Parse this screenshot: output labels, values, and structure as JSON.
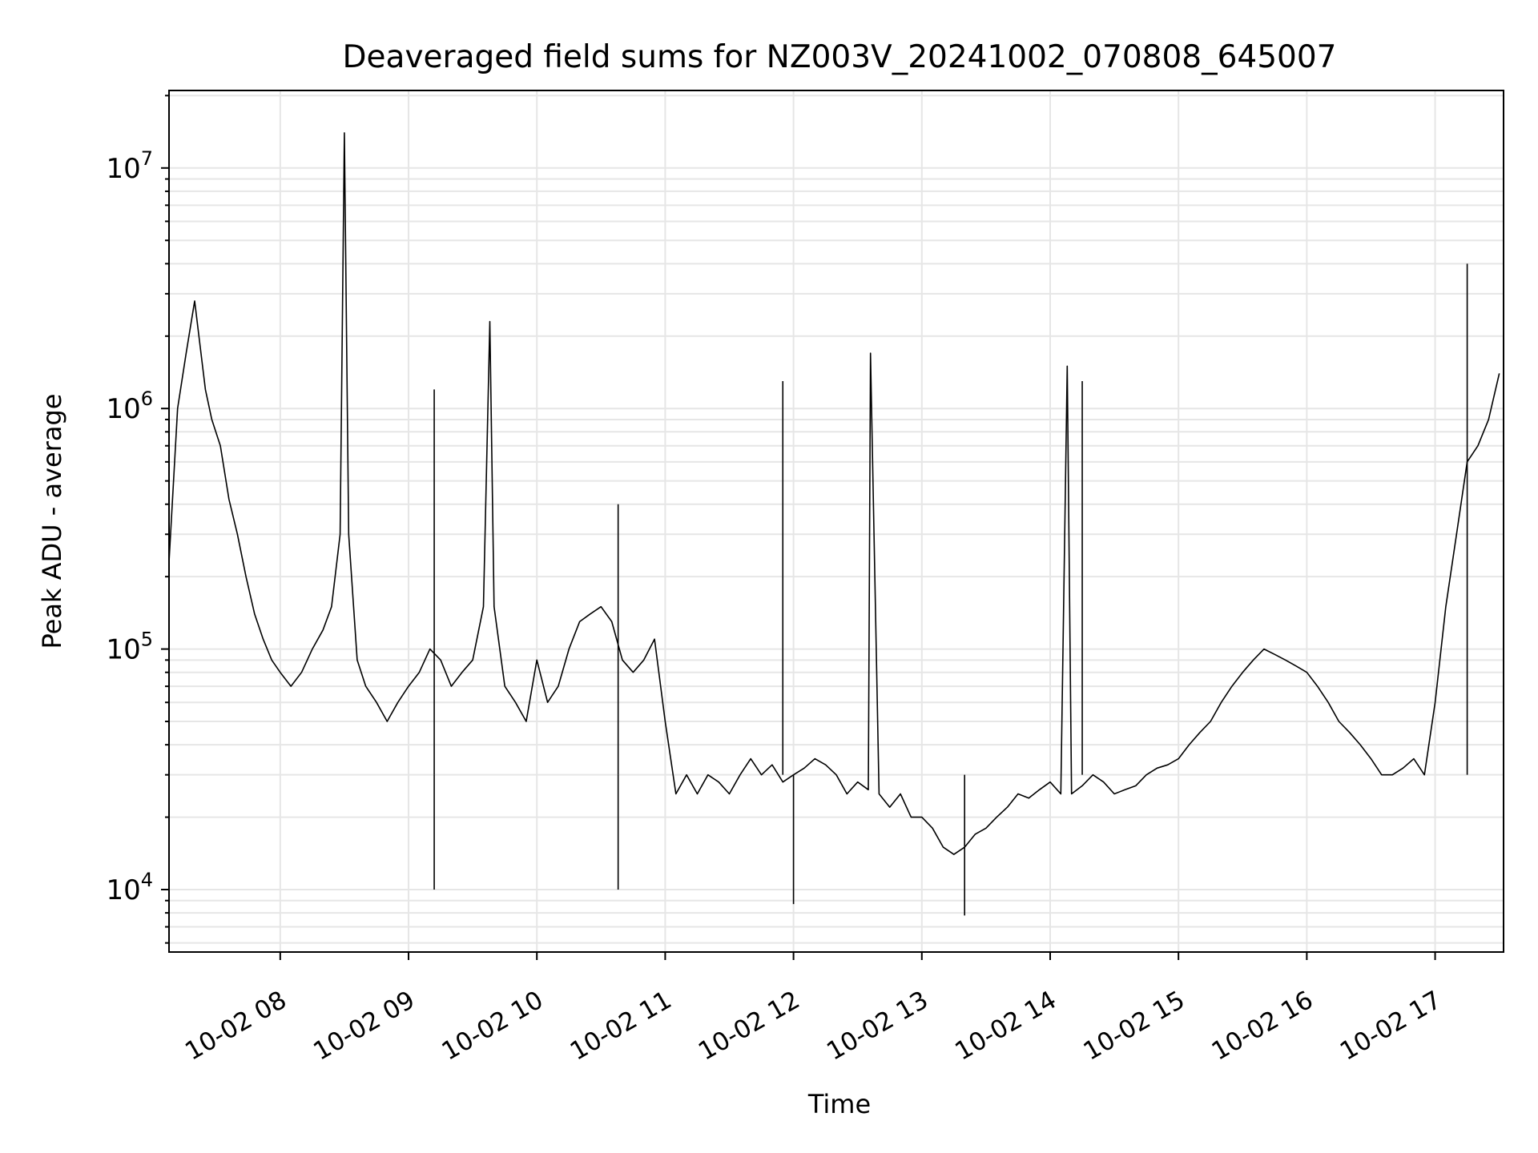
{
  "chart_data": {
    "type": "line",
    "title": "Deaveraged field sums for NZ003V_20241002_070808_645007",
    "xlabel": "Time",
    "ylabel": "Peak ADU - average",
    "x_range": [
      "2024-10-02T07:08",
      "2024-10-02T17:32"
    ],
    "y_scale": "log",
    "y_range": [
      5500,
      21000000
    ],
    "x_ticks": [
      {
        "value": "2024-10-02T08:00",
        "label": "10-02 08"
      },
      {
        "value": "2024-10-02T09:00",
        "label": "10-02 09"
      },
      {
        "value": "2024-10-02T10:00",
        "label": "10-02 10"
      },
      {
        "value": "2024-10-02T11:00",
        "label": "10-02 11"
      },
      {
        "value": "2024-10-02T12:00",
        "label": "10-02 12"
      },
      {
        "value": "2024-10-02T13:00",
        "label": "10-02 13"
      },
      {
        "value": "2024-10-02T14:00",
        "label": "10-02 14"
      },
      {
        "value": "2024-10-02T15:00",
        "label": "10-02 15"
      },
      {
        "value": "2024-10-02T16:00",
        "label": "10-02 16"
      },
      {
        "value": "2024-10-02T17:00",
        "label": "10-02 17"
      }
    ],
    "y_ticks": [
      {
        "value": 10000,
        "base": "10",
        "exp": "4"
      },
      {
        "value": 100000,
        "base": "10",
        "exp": "5"
      },
      {
        "value": 1000000,
        "base": "10",
        "exp": "6"
      },
      {
        "value": 10000000,
        "base": "10",
        "exp": "7"
      }
    ],
    "grid": true,
    "line_color": "#000000",
    "grid_color": "#e6e6e6",
    "series": [
      {
        "x": [
          "2024-10-02T07:08",
          "2024-10-02T07:12",
          "2024-10-02T07:16",
          "2024-10-02T07:20",
          "2024-10-02T07:25",
          "2024-10-02T07:28",
          "2024-10-02T07:32",
          "2024-10-02T07:36",
          "2024-10-02T07:40",
          "2024-10-02T07:44",
          "2024-10-02T07:48",
          "2024-10-02T07:52",
          "2024-10-02T07:56",
          "2024-10-02T08:00",
          "2024-10-02T08:05",
          "2024-10-02T08:10",
          "2024-10-02T08:15",
          "2024-10-02T08:20",
          "2024-10-02T08:24",
          "2024-10-02T08:28",
          "2024-10-02T08:30",
          "2024-10-02T08:32",
          "2024-10-02T08:36",
          "2024-10-02T08:40",
          "2024-10-02T08:45",
          "2024-10-02T08:50",
          "2024-10-02T08:55",
          "2024-10-02T09:00",
          "2024-10-02T09:05",
          "2024-10-02T09:10",
          "2024-10-02T09:15",
          "2024-10-02T09:20",
          "2024-10-02T09:25",
          "2024-10-02T09:30",
          "2024-10-02T09:35",
          "2024-10-02T09:38",
          "2024-10-02T09:40",
          "2024-10-02T09:45",
          "2024-10-02T09:50",
          "2024-10-02T09:55",
          "2024-10-02T10:00",
          "2024-10-02T10:05",
          "2024-10-02T10:10",
          "2024-10-02T10:15",
          "2024-10-02T10:20",
          "2024-10-02T10:25",
          "2024-10-02T10:30",
          "2024-10-02T10:35",
          "2024-10-02T10:40",
          "2024-10-02T10:45",
          "2024-10-02T10:50",
          "2024-10-02T10:55",
          "2024-10-02T11:00",
          "2024-10-02T11:05",
          "2024-10-02T11:10",
          "2024-10-02T11:15",
          "2024-10-02T11:20",
          "2024-10-02T11:25",
          "2024-10-02T11:30",
          "2024-10-02T11:35",
          "2024-10-02T11:40",
          "2024-10-02T11:45",
          "2024-10-02T11:50",
          "2024-10-02T11:55",
          "2024-10-02T12:00",
          "2024-10-02T12:05",
          "2024-10-02T12:10",
          "2024-10-02T12:15",
          "2024-10-02T12:20",
          "2024-10-02T12:25",
          "2024-10-02T12:30",
          "2024-10-02T12:35",
          "2024-10-02T12:36",
          "2024-10-02T12:40",
          "2024-10-02T12:45",
          "2024-10-02T12:50",
          "2024-10-02T12:55",
          "2024-10-02T13:00",
          "2024-10-02T13:05",
          "2024-10-02T13:10",
          "2024-10-02T13:15",
          "2024-10-02T13:20",
          "2024-10-02T13:25",
          "2024-10-02T13:30",
          "2024-10-02T13:35",
          "2024-10-02T13:40",
          "2024-10-02T13:45",
          "2024-10-02T13:50",
          "2024-10-02T13:55",
          "2024-10-02T14:00",
          "2024-10-02T14:05",
          "2024-10-02T14:08",
          "2024-10-02T14:10",
          "2024-10-02T14:15",
          "2024-10-02T14:20",
          "2024-10-02T14:25",
          "2024-10-02T14:30",
          "2024-10-02T14:35",
          "2024-10-02T14:40",
          "2024-10-02T14:45",
          "2024-10-02T14:50",
          "2024-10-02T14:55",
          "2024-10-02T15:00",
          "2024-10-02T15:05",
          "2024-10-02T15:10",
          "2024-10-02T15:15",
          "2024-10-02T15:20",
          "2024-10-02T15:25",
          "2024-10-02T15:30",
          "2024-10-02T15:35",
          "2024-10-02T15:40",
          "2024-10-02T15:45",
          "2024-10-02T15:50",
          "2024-10-02T15:55",
          "2024-10-02T16:00",
          "2024-10-02T16:05",
          "2024-10-02T16:10",
          "2024-10-02T16:15",
          "2024-10-02T16:20",
          "2024-10-02T16:25",
          "2024-10-02T16:30",
          "2024-10-02T16:35",
          "2024-10-02T16:40",
          "2024-10-02T16:45",
          "2024-10-02T16:50",
          "2024-10-02T16:55",
          "2024-10-02T17:00",
          "2024-10-02T17:05",
          "2024-10-02T17:10",
          "2024-10-02T17:15",
          "2024-10-02T17:20",
          "2024-10-02T17:25",
          "2024-10-02T17:30"
        ],
        "values": [
          230000,
          1000000,
          1700000,
          2800000,
          1200000,
          900000,
          700000,
          420000,
          300000,
          200000,
          140000,
          110000,
          90000,
          80000,
          70000,
          80000,
          100000,
          120000,
          150000,
          300000,
          14000000,
          300000,
          90000,
          70000,
          60000,
          50000,
          60000,
          70000,
          80000,
          100000,
          90000,
          70000,
          80000,
          90000,
          150000,
          2300000,
          150000,
          70000,
          60000,
          50000,
          90000,
          60000,
          70000,
          100000,
          130000,
          140000,
          150000,
          130000,
          90000,
          80000,
          90000,
          110000,
          50000,
          25000,
          30000,
          25000,
          30000,
          28000,
          25000,
          30000,
          35000,
          30000,
          33000,
          28000,
          30000,
          32000,
          35000,
          33000,
          30000,
          25000,
          28000,
          26000,
          1700000,
          25000,
          22000,
          25000,
          20000,
          20000,
          18000,
          15000,
          14000,
          15000,
          17000,
          18000,
          20000,
          22000,
          25000,
          24000,
          26000,
          28000,
          25000,
          1500000,
          25000,
          27000,
          30000,
          28000,
          25000,
          26000,
          27000,
          30000,
          32000,
          33000,
          35000,
          40000,
          45000,
          50000,
          60000,
          70000,
          80000,
          90000,
          100000,
          95000,
          90000,
          85000,
          80000,
          70000,
          60000,
          50000,
          45000,
          40000,
          35000,
          30000,
          30000,
          32000,
          35000,
          30000,
          60000,
          150000,
          300000,
          600000,
          700000,
          900000,
          1400000
        ],
        "spikes": [
          {
            "x": "2024-10-02T09:12",
            "values": [
              10000,
              1200000
            ]
          },
          {
            "x": "2024-10-02T10:38",
            "values": [
              10000,
              400000
            ]
          },
          {
            "x": "2024-10-02T11:55",
            "values": [
              1300000
            ]
          },
          {
            "x": "2024-10-02T12:00",
            "values": [
              8700
            ]
          },
          {
            "x": "2024-10-02T13:20",
            "values": [
              7800
            ]
          },
          {
            "x": "2024-10-02T14:15",
            "values": [
              1300000
            ]
          },
          {
            "x": "2024-10-02T17:15",
            "values": [
              4000000
            ]
          }
        ]
      }
    ]
  }
}
